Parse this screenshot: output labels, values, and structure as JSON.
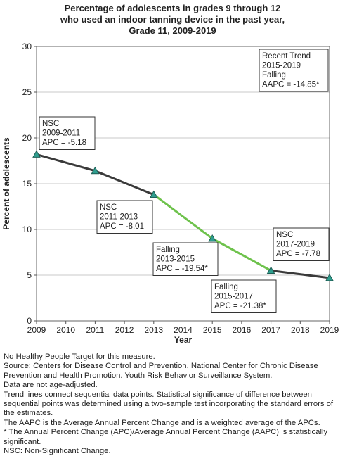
{
  "title_lines": [
    "Percentage of adolescents in grades 9 through 12",
    "who used an indoor tanning device in the past year,",
    "Grade 11,  2009-2019"
  ],
  "chart_data": {
    "type": "line",
    "title": "Percentage of adolescents in grades 9 through 12 who used an indoor tanning device in the past year, Grade 11, 2009-2019",
    "xlabel": "Year",
    "ylabel": "Percent of adolescents",
    "xlim": [
      2009,
      2019
    ],
    "ylim": [
      0,
      30
    ],
    "x_ticks": [
      2009,
      2010,
      2011,
      2012,
      2013,
      2014,
      2015,
      2016,
      2017,
      2018,
      2019
    ],
    "y_ticks": [
      0,
      5,
      10,
      15,
      20,
      25,
      30
    ],
    "grid": "horizontal",
    "points": [
      {
        "x": 2009,
        "y": 18.2
      },
      {
        "x": 2011,
        "y": 16.4
      },
      {
        "x": 2013,
        "y": 13.8
      },
      {
        "x": 2015,
        "y": 9.0
      },
      {
        "x": 2017,
        "y": 5.5
      },
      {
        "x": 2019,
        "y": 4.7
      }
    ],
    "segments": [
      {
        "from": 2009,
        "to": 2013,
        "color": "#3a3a3a"
      },
      {
        "from": 2013,
        "to": 2017,
        "color": "#6ec24c"
      },
      {
        "from": 2017,
        "to": 2019,
        "color": "#3a3a3a"
      }
    ],
    "marker_color": "#2f9e8f",
    "annotations": [
      {
        "lines": [
          "NSC",
          "2009-2011",
          "APC = -5.18"
        ]
      },
      {
        "lines": [
          "NSC",
          "2011-2013",
          "APC = -8.01"
        ]
      },
      {
        "lines": [
          "Falling",
          "2013-2015",
          "APC = -19.54*"
        ]
      },
      {
        "lines": [
          "Falling",
          "2015-2017",
          "APC = -21.38*"
        ]
      },
      {
        "lines": [
          "NSC",
          "2017-2019",
          "APC = -7.78"
        ]
      },
      {
        "lines": [
          "Recent Trend",
          "2015-2019",
          "Falling",
          "AAPC = -14.85*"
        ]
      }
    ]
  },
  "notes": [
    "No Healthy People Target for this measure.",
    "Source: Centers for Disease Control and Prevention, National Center for Chronic Disease Prevention and Health Promotion. Youth Risk Behavior Surveillance System.",
    "Data are not age-adjusted.",
    "Trend lines connect sequential data points. Statistical significance of difference between sequential points was determined using a two-sample test incorporating the standard errors of the estimates.",
    "The AAPC is the Average Annual Percent Change and is a weighted average of the APCs.",
    "* The Annual Percent Change (APC)/Average Annual Percent Change (AAPC) is statistically significant.",
    "NSC: Non-Significant Change."
  ]
}
